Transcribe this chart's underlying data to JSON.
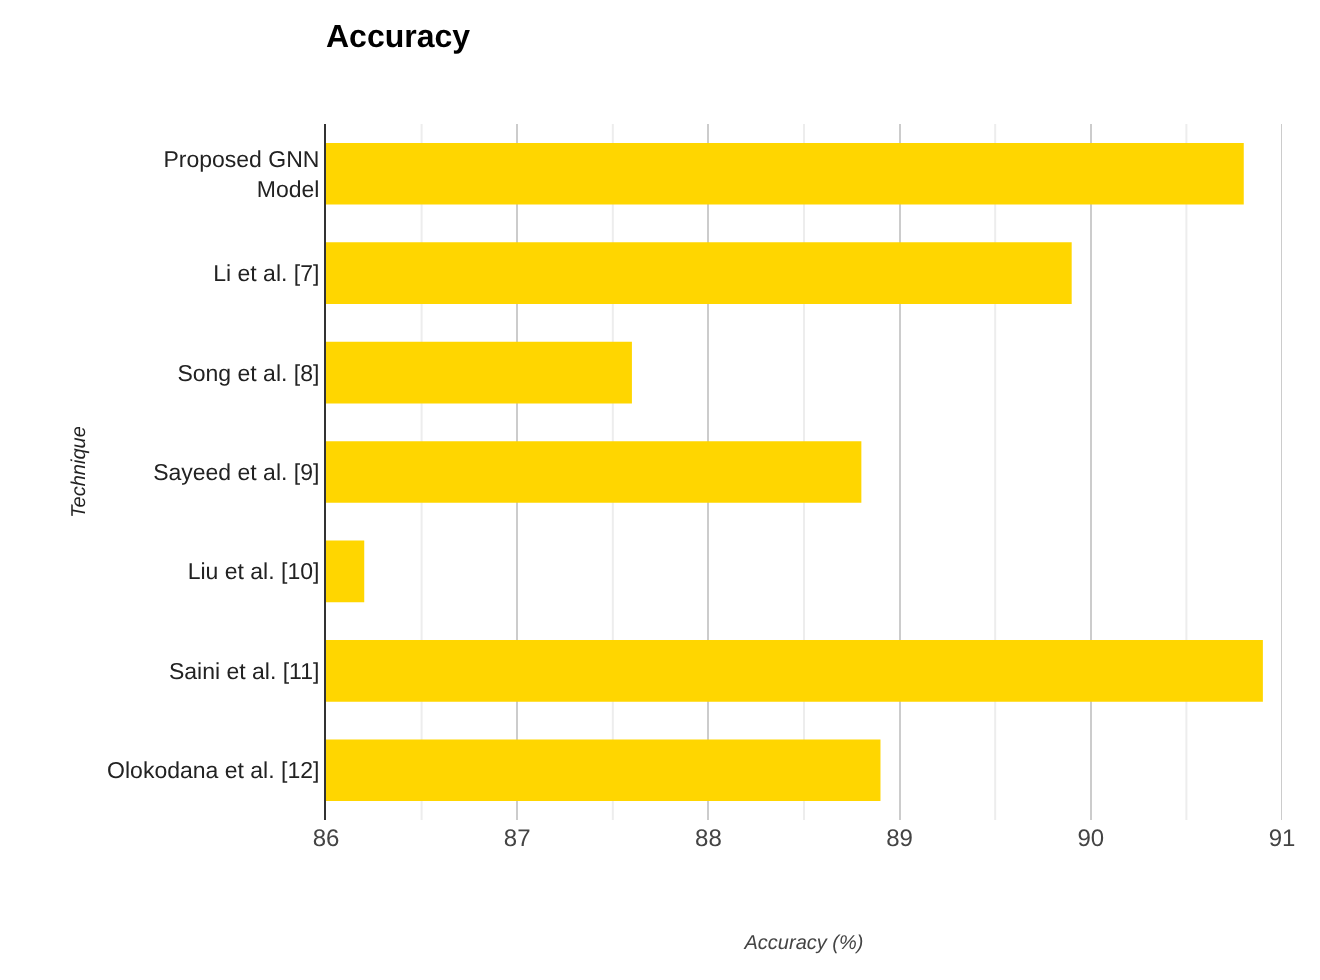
{
  "chart_data": {
    "type": "bar",
    "orientation": "horizontal",
    "title": "Accuracy",
    "xlabel": "Accuracy (%)",
    "ylabel": "Technique",
    "categories": [
      "Proposed GNN\nModel",
      "Li et al. [7]",
      "Song et al. [8]",
      "Sayeed et al. [9]",
      "Liu et al. [10]",
      "Saini et al. [11]",
      "Olokodana et al. [12]"
    ],
    "values": [
      90.8,
      89.9,
      87.6,
      88.8,
      86.2,
      90.9,
      88.9
    ],
    "color": "#ffd600",
    "xlim": [
      86,
      91
    ],
    "xticks": [
      86,
      {
        "value": 86.5,
        "label": null
      },
      87,
      {
        "value": 87.5,
        "label": null
      },
      88,
      {
        "value": 88.5,
        "label": null
      },
      89,
      {
        "value": 89.5,
        "label": null
      },
      90,
      {
        "value": 90.5,
        "label": null
      },
      91
    ],
    "grid": "x"
  }
}
